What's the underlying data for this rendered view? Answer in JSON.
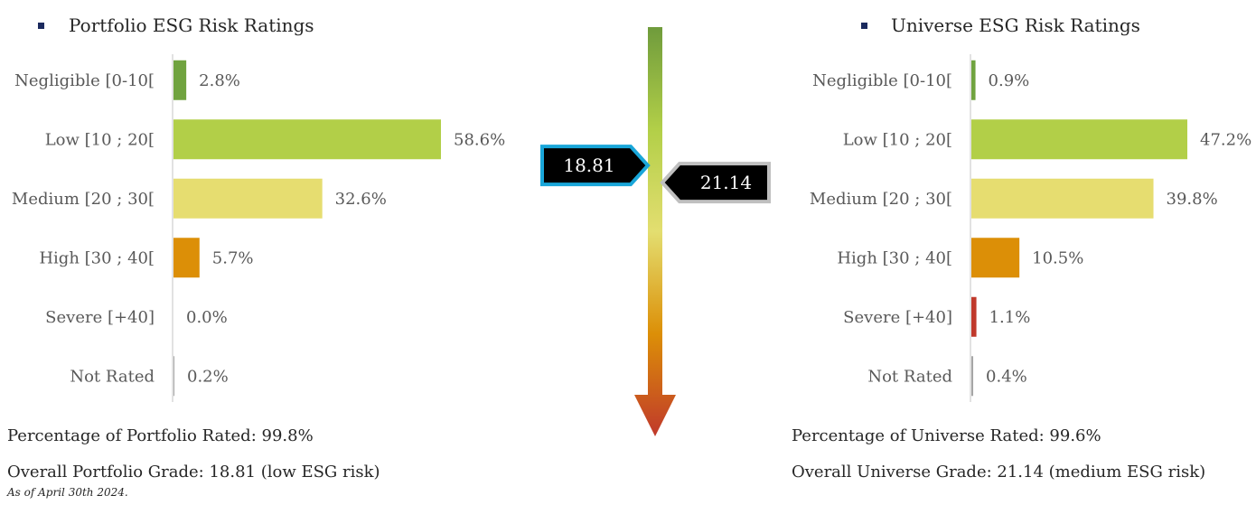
{
  "chart_data": [
    {
      "type": "bar",
      "orientation": "horizontal",
      "title": "Portfolio ESG Risk Ratings",
      "categories": [
        "Negligible [0-10[",
        "Low [10 ; 20[",
        "Medium [20 ; 30[",
        "High [30 ; 40[",
        "Severe [+40]",
        "Not Rated"
      ],
      "values": [
        2.8,
        58.6,
        32.6,
        5.7,
        0.0,
        0.2
      ],
      "value_labels": [
        "2.8%",
        "58.6%",
        "32.6%",
        "5.7%",
        "0.0%",
        "0.2%"
      ],
      "colors": [
        "#70a33f",
        "#b2cf48",
        "#e6dd70",
        "#dc8f07",
        "#c0392b",
        "#a6a6a6"
      ],
      "xlim": [
        0,
        60
      ],
      "grid": false,
      "legend": "none"
    },
    {
      "type": "bar",
      "orientation": "horizontal",
      "title": "Universe ESG Risk Ratings",
      "categories": [
        "Negligible [0-10[",
        "Low [10 ; 20[",
        "Medium [20 ; 30[",
        "High [30 ; 40[",
        "Severe [+40]",
        "Not Rated"
      ],
      "values": [
        0.9,
        47.2,
        39.8,
        10.5,
        1.1,
        0.4
      ],
      "value_labels": [
        "0.9%",
        "47.2%",
        "39.8%",
        "10.5%",
        "1.1%",
        "0.4%"
      ],
      "colors": [
        "#70a33f",
        "#b2cf48",
        "#e6dd70",
        "#dc8f07",
        "#c0392b",
        "#a6a6a6"
      ],
      "xlim": [
        0,
        48
      ],
      "grid": false,
      "legend": "none"
    }
  ],
  "scale": {
    "min": 0,
    "max": 50,
    "gradient_colors": [
      "#6f9b3c",
      "#b2cf48",
      "#e3de70",
      "#dc8f07",
      "#c0392b"
    ],
    "markers": [
      {
        "label": "18.81",
        "value": 18.81,
        "side": "left",
        "border_color": "#19a6d9"
      },
      {
        "label": "21.14",
        "value": 21.14,
        "side": "right",
        "border_color": "#bfbfbf"
      }
    ]
  },
  "portfolio": {
    "heading": "Portfolio ESG Risk Ratings",
    "rated_text": "Percentage of Portfolio Rated: 99.8%",
    "grade_text": "Overall Portfolio Grade: 18.81 (low ESG risk)"
  },
  "universe": {
    "heading": "Universe ESG Risk Ratings",
    "rated_text": "Percentage of Universe Rated: 99.6%",
    "grade_text": "Overall Universe Grade: 21.14 (medium ESG risk)"
  },
  "as_of": "As of April 30th 2024."
}
